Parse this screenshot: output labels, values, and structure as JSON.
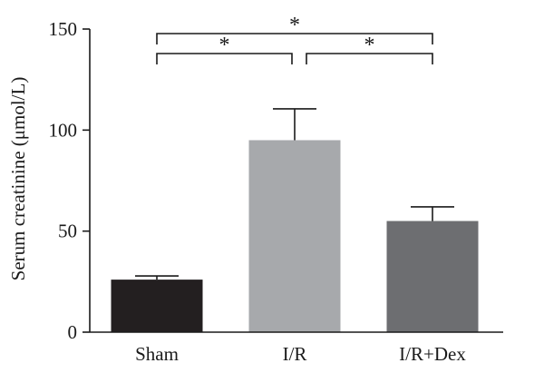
{
  "chart_data": {
    "type": "bar",
    "title": "",
    "xlabel": "",
    "ylabel": "Serum creatinine (μmol/L)",
    "ylim": [
      0,
      150
    ],
    "yticks": [
      0,
      50,
      100,
      150
    ],
    "grid": false,
    "categories": [
      "Sham",
      "I/R",
      "I/R+Dex"
    ],
    "values": [
      26,
      95,
      55
    ],
    "errors": [
      1.8,
      15.5,
      7
    ],
    "colors": [
      "#231f20",
      "#a7a9ac",
      "#6d6e71"
    ],
    "significance": [
      {
        "from": 0,
        "to": 2,
        "label": "*"
      },
      {
        "from": 0,
        "to": 1,
        "label": "*"
      },
      {
        "from": 1,
        "to": 2,
        "label": "*"
      }
    ]
  }
}
